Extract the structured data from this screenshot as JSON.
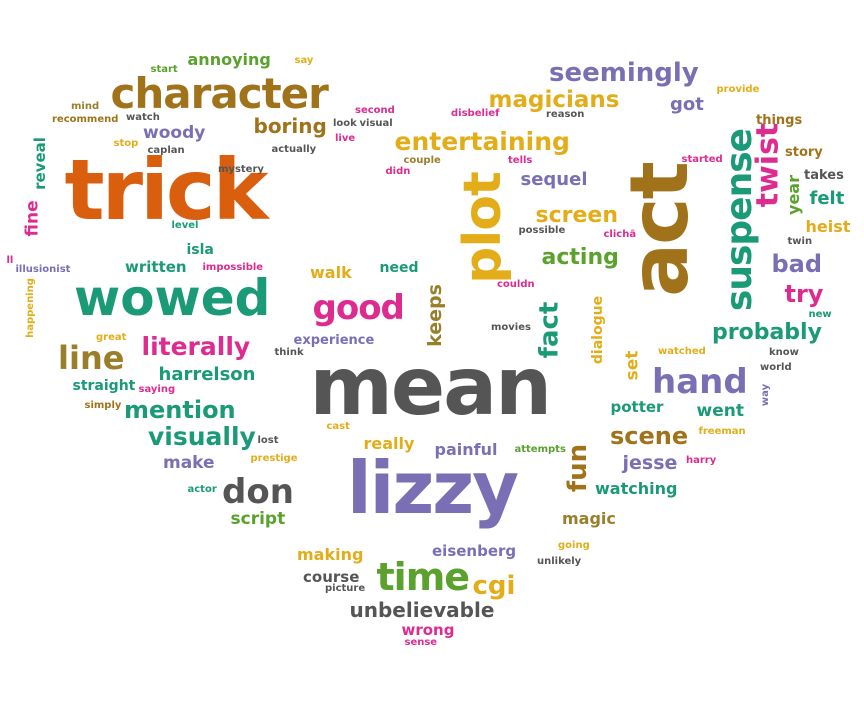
{
  "palette": {
    "orange": "#d95f0e",
    "teal": "#1a9a77",
    "purple": "#7a6fb5",
    "gray": "#555555",
    "gold": "#e3ad19",
    "brown": "#a0731a",
    "pink": "#dd2b8f",
    "green": "#5aa22d",
    "olive": "#9a7f2a"
  },
  "words": [
    {
      "id": "trick",
      "text": "trick",
      "color": "orange",
      "rot": 0
    },
    {
      "id": "act",
      "text": "act",
      "color": "brown",
      "rot": -90
    },
    {
      "id": "mean",
      "text": "mean",
      "color": "gray",
      "rot": 0
    },
    {
      "id": "lizzy",
      "text": "lizzy",
      "color": "purple",
      "rot": 0
    },
    {
      "id": "wowed",
      "text": "wowed",
      "color": "teal",
      "rot": 0
    },
    {
      "id": "plot",
      "text": "plot",
      "color": "gold",
      "rot": -90
    },
    {
      "id": "character",
      "text": "character",
      "color": "brown",
      "rot": 0
    },
    {
      "id": "suspense",
      "text": "suspense",
      "color": "teal",
      "rot": -90
    },
    {
      "id": "entertaining",
      "text": "entertaining",
      "color": "gold",
      "rot": 0
    },
    {
      "id": "good",
      "text": "good",
      "color": "pink",
      "rot": 0
    },
    {
      "id": "time",
      "text": "time",
      "color": "green",
      "rot": 0
    },
    {
      "id": "hand",
      "text": "hand",
      "color": "purple",
      "rot": 0
    },
    {
      "id": "don",
      "text": "don",
      "color": "gray",
      "rot": 0
    },
    {
      "id": "seemingly",
      "text": "seemingly",
      "color": "purple",
      "rot": 0
    },
    {
      "id": "magicians",
      "text": "magicians",
      "color": "gold",
      "rot": 0
    },
    {
      "id": "literally",
      "text": "literally",
      "color": "pink",
      "rot": 0
    },
    {
      "id": "line",
      "text": "line",
      "color": "olive",
      "rot": 0
    },
    {
      "id": "visually",
      "text": "visually",
      "color": "teal",
      "rot": 0
    },
    {
      "id": "mention",
      "text": "mention",
      "color": "teal",
      "rot": 0
    },
    {
      "id": "scene",
      "text": "scene",
      "color": "brown",
      "rot": 0
    },
    {
      "id": "twist",
      "text": "twist",
      "color": "pink",
      "rot": -90
    },
    {
      "id": "probably",
      "text": "probably",
      "color": "teal",
      "rot": 0
    },
    {
      "id": "acting",
      "text": "acting",
      "color": "green",
      "rot": 0
    },
    {
      "id": "screen",
      "text": "screen",
      "color": "gold",
      "rot": 0
    },
    {
      "id": "fact",
      "text": "fact",
      "color": "teal",
      "rot": -90
    },
    {
      "id": "boring",
      "text": "boring",
      "color": "brown",
      "rot": 0
    },
    {
      "id": "woody",
      "text": "woody",
      "color": "purple",
      "rot": 0
    },
    {
      "id": "cgi",
      "text": "cgi",
      "color": "gold",
      "rot": 0
    },
    {
      "id": "unbelievable",
      "text": "unbelievable",
      "color": "gray",
      "rot": 0
    },
    {
      "id": "annoying",
      "text": "annoying",
      "color": "green",
      "rot": 0
    },
    {
      "id": "got",
      "text": "got",
      "color": "purple",
      "rot": 0
    },
    {
      "id": "sequel",
      "text": "sequel",
      "color": "purple",
      "rot": 0
    },
    {
      "id": "bad",
      "text": "bad",
      "color": "purple",
      "rot": 0
    },
    {
      "id": "try",
      "text": "try",
      "color": "pink",
      "rot": 0
    },
    {
      "id": "keeps",
      "text": "keeps",
      "color": "olive",
      "rot": -90
    },
    {
      "id": "fun",
      "text": "fun",
      "color": "brown",
      "rot": -90
    },
    {
      "id": "harrelson",
      "text": "harrelson",
      "color": "teal",
      "rot": 0
    },
    {
      "id": "walk",
      "text": "walk",
      "color": "gold",
      "rot": 0
    },
    {
      "id": "written",
      "text": "written",
      "color": "teal",
      "rot": 0
    },
    {
      "id": "script",
      "text": "script",
      "color": "green",
      "rot": 0
    },
    {
      "id": "make",
      "text": "make",
      "color": "purple",
      "rot": 0
    },
    {
      "id": "really",
      "text": "really",
      "color": "gold",
      "rot": 0
    },
    {
      "id": "painful",
      "text": "painful",
      "color": "purple",
      "rot": 0
    },
    {
      "id": "jesse",
      "text": "jesse",
      "color": "purple",
      "rot": 0
    },
    {
      "id": "watching",
      "text": "watching",
      "color": "teal",
      "rot": 0
    },
    {
      "id": "magic",
      "text": "magic",
      "color": "olive",
      "rot": 0
    },
    {
      "id": "making",
      "text": "making",
      "color": "gold",
      "rot": 0
    },
    {
      "id": "eisenberg",
      "text": "eisenberg",
      "color": "purple",
      "rot": 0
    },
    {
      "id": "course",
      "text": "course",
      "color": "gray",
      "rot": 0
    },
    {
      "id": "wrong",
      "text": "wrong",
      "color": "pink",
      "rot": 0
    },
    {
      "id": "fine",
      "text": "fine",
      "color": "pink",
      "rot": -90
    },
    {
      "id": "reveal",
      "text": "reveal",
      "color": "teal",
      "rot": -90
    },
    {
      "id": "heist",
      "text": "heist",
      "color": "gold",
      "rot": 0
    },
    {
      "id": "felt",
      "text": "felt",
      "color": "teal",
      "rot": 0
    },
    {
      "id": "year",
      "text": "year",
      "color": "green",
      "rot": -90
    },
    {
      "id": "went",
      "text": "went",
      "color": "teal",
      "rot": 0
    },
    {
      "id": "potter",
      "text": "potter",
      "color": "teal",
      "rot": 0
    },
    {
      "id": "isla",
      "text": "isla",
      "color": "teal",
      "rot": 0
    },
    {
      "id": "need",
      "text": "need",
      "color": "teal",
      "rot": 0
    },
    {
      "id": "experience",
      "text": "experience",
      "color": "purple",
      "rot": 0
    },
    {
      "id": "straight",
      "text": "straight",
      "color": "teal",
      "rot": 0
    },
    {
      "id": "dialogue",
      "text": "dialogue",
      "color": "gold",
      "rot": -90
    },
    {
      "id": "set",
      "text": "set",
      "color": "gold",
      "rot": -90
    },
    {
      "id": "things",
      "text": "things",
      "color": "brown",
      "rot": 0
    },
    {
      "id": "story",
      "text": "story",
      "color": "brown",
      "rot": 0
    },
    {
      "id": "takes",
      "text": "takes",
      "color": "gray",
      "rot": 0
    },
    {
      "id": "start",
      "text": "start",
      "color": "green",
      "rot": 0
    },
    {
      "id": "say",
      "text": "say",
      "color": "gold",
      "rot": 0
    },
    {
      "id": "mind",
      "text": "mind",
      "color": "olive",
      "rot": 0
    },
    {
      "id": "recommend",
      "text": "recommend",
      "color": "brown",
      "rot": 0
    },
    {
      "id": "watch",
      "text": "watch",
      "color": "gray",
      "rot": 0
    },
    {
      "id": "second",
      "text": "second",
      "color": "pink",
      "rot": 0
    },
    {
      "id": "look",
      "text": "look",
      "color": "gray",
      "rot": 0
    },
    {
      "id": "visual",
      "text": "visual",
      "color": "gray",
      "rot": 0
    },
    {
      "id": "disbelief",
      "text": "disbelief",
      "color": "pink",
      "rot": 0
    },
    {
      "id": "reason",
      "text": "reason",
      "color": "gray",
      "rot": 0
    },
    {
      "id": "provide",
      "text": "provide",
      "color": "gold",
      "rot": 0
    },
    {
      "id": "stop",
      "text": "stop",
      "color": "gold",
      "rot": 0
    },
    {
      "id": "caplan",
      "text": "caplan",
      "color": "gray",
      "rot": 0
    },
    {
      "id": "actually",
      "text": "actually",
      "color": "gray",
      "rot": 0
    },
    {
      "id": "live",
      "text": "live",
      "color": "pink",
      "rot": 0
    },
    {
      "id": "mystery",
      "text": "mystery",
      "color": "gray",
      "rot": 0
    },
    {
      "id": "couple",
      "text": "couple",
      "color": "olive",
      "rot": 0
    },
    {
      "id": "didn",
      "text": "didn",
      "color": "pink",
      "rot": 0
    },
    {
      "id": "tells",
      "text": "tells",
      "color": "pink",
      "rot": 0
    },
    {
      "id": "started",
      "text": "started",
      "color": "pink",
      "rot": 0
    },
    {
      "id": "possible",
      "text": "possible",
      "color": "gray",
      "rot": 0
    },
    {
      "id": "cliche",
      "text": "clichã",
      "color": "pink",
      "rot": 0
    },
    {
      "id": "level",
      "text": "level",
      "color": "teal",
      "rot": 0
    },
    {
      "id": "impossible",
      "text": "impossible",
      "color": "pink",
      "rot": 0
    },
    {
      "id": "illusionist",
      "text": "illusionist",
      "color": "purple",
      "rot": 0
    },
    {
      "id": "ll",
      "text": "ll",
      "color": "pink",
      "rot": 0
    },
    {
      "id": "happening",
      "text": "happening",
      "color": "gold",
      "rot": -90
    },
    {
      "id": "great",
      "text": "great",
      "color": "gold",
      "rot": 0
    },
    {
      "id": "think",
      "text": "think",
      "color": "gray",
      "rot": 0
    },
    {
      "id": "saying",
      "text": "saying",
      "color": "pink",
      "rot": 0
    },
    {
      "id": "simply",
      "text": "simply",
      "color": "brown",
      "rot": 0
    },
    {
      "id": "couldn",
      "text": "couldn",
      "color": "pink",
      "rot": 0
    },
    {
      "id": "movies",
      "text": "movies",
      "color": "gray",
      "rot": 0
    },
    {
      "id": "watched",
      "text": "watched",
      "color": "gold",
      "rot": 0
    },
    {
      "id": "know",
      "text": "know",
      "color": "gray",
      "rot": 0
    },
    {
      "id": "world",
      "text": "world",
      "color": "gray",
      "rot": 0
    },
    {
      "id": "way",
      "text": "way",
      "color": "purple",
      "rot": -90
    },
    {
      "id": "new",
      "text": "new",
      "color": "teal",
      "rot": 0
    },
    {
      "id": "twin",
      "text": "twin",
      "color": "gray",
      "rot": 0
    },
    {
      "id": "lost",
      "text": "lost",
      "color": "gray",
      "rot": 0
    },
    {
      "id": "cast",
      "text": "cast",
      "color": "gold",
      "rot": 0
    },
    {
      "id": "prestige",
      "text": "prestige",
      "color": "gold",
      "rot": 0
    },
    {
      "id": "attempts",
      "text": "attempts",
      "color": "green",
      "rot": 0
    },
    {
      "id": "freeman",
      "text": "freeman",
      "color": "gold",
      "rot": 0
    },
    {
      "id": "harry",
      "text": "harry",
      "color": "pink",
      "rot": 0
    },
    {
      "id": "actor",
      "text": "actor",
      "color": "teal",
      "rot": 0
    },
    {
      "id": "going",
      "text": "going",
      "color": "gold",
      "rot": 0
    },
    {
      "id": "unlikely",
      "text": "unlikely",
      "color": "gray",
      "rot": 0
    },
    {
      "id": "picture",
      "text": "picture",
      "color": "gray",
      "rot": 0
    },
    {
      "id": "sense",
      "text": "sense",
      "color": "pink",
      "rot": 0
    }
  ]
}
